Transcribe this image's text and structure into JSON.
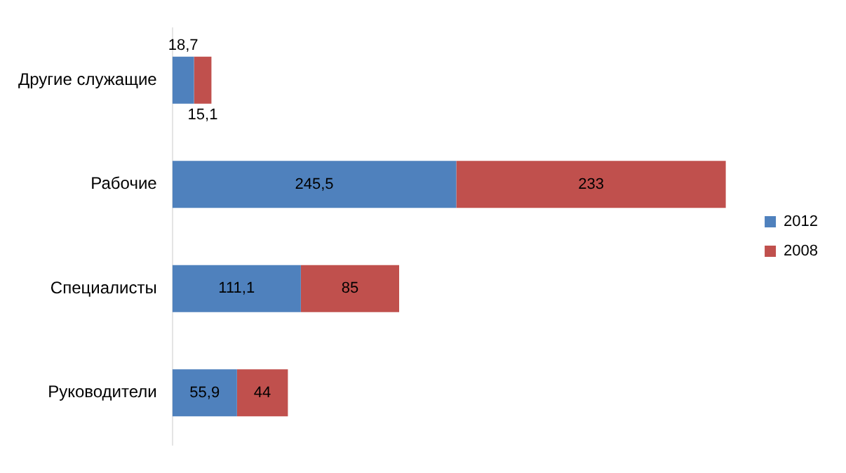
{
  "chart_data": {
    "type": "bar",
    "orientation": "horizontal",
    "stacked": true,
    "legend": "right",
    "grid": false,
    "tick_labels": "y",
    "categories": [
      "Другие служащие",
      "Рабочие",
      "Специалисты",
      "Руководители"
    ],
    "series": [
      {
        "name": "2012",
        "color": "#4f81bd",
        "values": [
          18.7,
          245.5,
          111.1,
          55.9
        ],
        "value_labels": [
          "18,7",
          "245,5",
          "111,1",
          "55,9"
        ]
      },
      {
        "name": "2008",
        "color": "#c0504d",
        "values": [
          15.1,
          233,
          85,
          44
        ],
        "value_labels": [
          "15,1",
          "233",
          "85",
          "44"
        ]
      }
    ]
  }
}
